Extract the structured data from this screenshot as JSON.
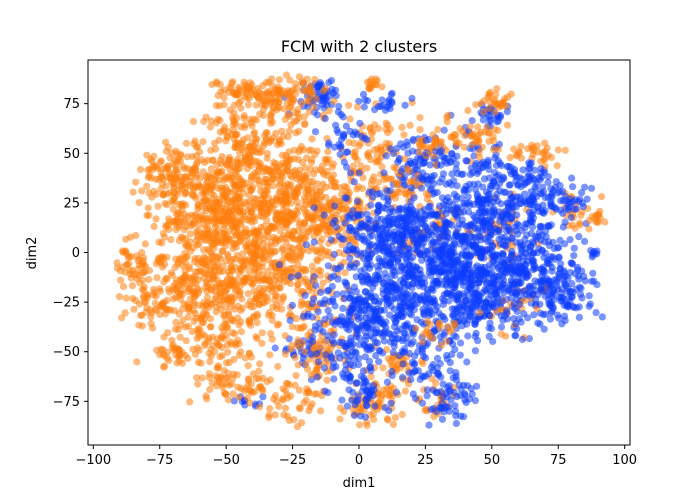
{
  "chart_data": {
    "type": "scatter",
    "title": "FCM with 2 clusters",
    "xlabel": "dim1",
    "ylabel": "dim2",
    "xlim": [
      -102,
      102
    ],
    "ylim": [
      -97,
      97
    ],
    "xticks": [
      -100,
      -75,
      -50,
      -25,
      0,
      25,
      50,
      75,
      100
    ],
    "yticks": [
      -75,
      -50,
      -25,
      0,
      25,
      50,
      75
    ],
    "grid": false,
    "legend": "none",
    "series": [
      {
        "color": "#ff7f0e",
        "blobs": [
          {
            "cx": -70,
            "cy": 40,
            "sx": 5,
            "sy": 6,
            "n": 70
          },
          {
            "cx": -85,
            "cy": -5,
            "sx": 5,
            "sy": 6,
            "n": 50
          },
          {
            "cx": -78,
            "cy": -25,
            "sx": 6,
            "sy": 6,
            "n": 50
          },
          {
            "cx": -55,
            "cy": 20,
            "sx": 12,
            "sy": 15,
            "n": 420
          },
          {
            "cx": -45,
            "cy": 55,
            "sx": 8,
            "sy": 12,
            "n": 130
          },
          {
            "cx": -40,
            "cy": 80,
            "sx": 8,
            "sy": 4,
            "n": 70
          },
          {
            "cx": -25,
            "cy": 75,
            "sx": 7,
            "sy": 8,
            "n": 90
          },
          {
            "cx": -30,
            "cy": 30,
            "sx": 12,
            "sy": 15,
            "n": 380
          },
          {
            "cx": -35,
            "cy": -10,
            "sx": 14,
            "sy": 15,
            "n": 380
          },
          {
            "cx": -60,
            "cy": -15,
            "sx": 10,
            "sy": 10,
            "n": 160
          },
          {
            "cx": -55,
            "cy": -40,
            "sx": 8,
            "sy": 10,
            "n": 110
          },
          {
            "cx": -70,
            "cy": -50,
            "sx": 4,
            "sy": 3,
            "n": 35
          },
          {
            "cx": -45,
            "cy": -65,
            "sx": 8,
            "sy": 5,
            "n": 70
          },
          {
            "cx": -25,
            "cy": -75,
            "sx": 5,
            "sy": 6,
            "n": 40
          },
          {
            "cx": -15,
            "cy": -50,
            "sx": 6,
            "sy": 10,
            "n": 70
          },
          {
            "cx": -10,
            "cy": 20,
            "sx": 8,
            "sy": 12,
            "n": 170
          },
          {
            "cx": 5,
            "cy": 55,
            "sx": 6,
            "sy": 10,
            "n": 60
          },
          {
            "cx": 15,
            "cy": 35,
            "sx": 6,
            "sy": 6,
            "n": 50
          },
          {
            "cx": 10,
            "cy": -70,
            "sx": 6,
            "sy": 8,
            "n": 50
          },
          {
            "cx": 15,
            "cy": -55,
            "sx": 4,
            "sy": 4,
            "n": 25
          },
          {
            "cx": 0,
            "cy": -80,
            "sx": 5,
            "sy": 4,
            "n": 25
          },
          {
            "cx": 30,
            "cy": -75,
            "sx": 3,
            "sy": 5,
            "n": 25
          },
          {
            "cx": 42,
            "cy": 58,
            "sx": 7,
            "sy": 4,
            "n": 45
          },
          {
            "cx": 30,
            "cy": 55,
            "sx": 6,
            "sy": 4,
            "n": 35
          },
          {
            "cx": 50,
            "cy": 75,
            "sx": 3,
            "sy": 3,
            "n": 30
          },
          {
            "cx": 65,
            "cy": 50,
            "sx": 5,
            "sy": 3,
            "n": 30
          },
          {
            "cx": 90,
            "cy": 17,
            "sx": 2,
            "sy": 2,
            "n": 15
          },
          {
            "cx": 5,
            "cy": 85,
            "sx": 2,
            "sy": 3,
            "n": 15
          },
          {
            "cx": 55,
            "cy": 10,
            "sx": 5,
            "sy": 10,
            "n": 40
          },
          {
            "cx": 30,
            "cy": -40,
            "sx": 4,
            "sy": 4,
            "n": 20
          },
          {
            "cx": 60,
            "cy": -30,
            "sx": 5,
            "sy": 6,
            "n": 25
          },
          {
            "cx": 80,
            "cy": 20,
            "sx": 4,
            "sy": 4,
            "n": 20
          },
          {
            "cx": 30,
            "cy": 15,
            "sx": 4,
            "sy": 4,
            "n": 20
          },
          {
            "cx": 20,
            "cy": 5,
            "sx": 4,
            "sy": 4,
            "n": 20
          }
        ]
      },
      {
        "color": "#0d3cff",
        "blobs": [
          {
            "cx": 35,
            "cy": -15,
            "sx": 15,
            "sy": 15,
            "n": 600
          },
          {
            "cx": 15,
            "cy": 10,
            "sx": 12,
            "sy": 12,
            "n": 350
          },
          {
            "cx": 5,
            "cy": -30,
            "sx": 12,
            "sy": 12,
            "n": 300
          },
          {
            "cx": 60,
            "cy": -10,
            "sx": 12,
            "sy": 12,
            "n": 300
          },
          {
            "cx": 70,
            "cy": 25,
            "sx": 8,
            "sy": 8,
            "n": 120
          },
          {
            "cx": 78,
            "cy": -20,
            "sx": 5,
            "sy": 6,
            "n": 80
          },
          {
            "cx": 45,
            "cy": 20,
            "sx": 10,
            "sy": 10,
            "n": 200
          },
          {
            "cx": 40,
            "cy": 45,
            "sx": 7,
            "sy": 8,
            "n": 80
          },
          {
            "cx": 20,
            "cy": 45,
            "sx": 7,
            "sy": 7,
            "n": 70
          },
          {
            "cx": 60,
            "cy": 40,
            "sx": 5,
            "sy": 4,
            "n": 35
          },
          {
            "cx": 25,
            "cy": -55,
            "sx": 6,
            "sy": 10,
            "n": 60
          },
          {
            "cx": 35,
            "cy": -75,
            "sx": 4,
            "sy": 6,
            "n": 50
          },
          {
            "cx": 0,
            "cy": -70,
            "sx": 5,
            "sy": 6,
            "n": 50
          },
          {
            "cx": -5,
            "cy": -50,
            "sx": 6,
            "sy": 8,
            "n": 60
          },
          {
            "cx": -20,
            "cy": -50,
            "sx": 5,
            "sy": 4,
            "n": 30
          },
          {
            "cx": -15,
            "cy": 80,
            "sx": 5,
            "sy": 5,
            "n": 60
          },
          {
            "cx": -5,
            "cy": 60,
            "sx": 4,
            "sy": 5,
            "n": 30
          },
          {
            "cx": 10,
            "cy": 75,
            "sx": 4,
            "sy": 3,
            "n": 20
          },
          {
            "cx": 50,
            "cy": 70,
            "sx": 3,
            "sy": 3,
            "n": 25
          },
          {
            "cx": 88,
            "cy": 0,
            "sx": 1,
            "sy": 1,
            "n": 8
          },
          {
            "cx": -40,
            "cy": -75,
            "sx": 3,
            "sy": 2,
            "n": 10
          }
        ]
      }
    ]
  }
}
